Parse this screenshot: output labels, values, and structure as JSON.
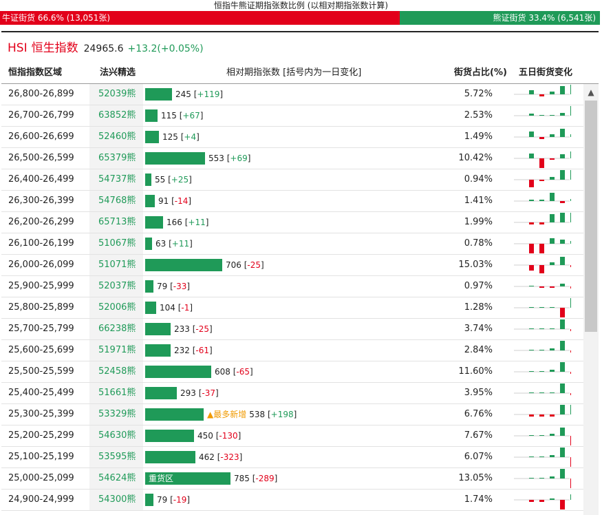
{
  "top_title": "恒指牛熊证期指张数比例 (以相对期指张数计算)",
  "ratio": {
    "bull_label": "牛证街货 66.6% (13,051张)",
    "bear_label": "熊证街货 33.4% (6,541张)",
    "bull_percent": 66.6,
    "bull_color": "#e2001a",
    "bear_color": "#1f9a58"
  },
  "index": {
    "code": "HSI",
    "name": "恒生指数",
    "value": "24965.6",
    "change": "+13.2(+0.05%)"
  },
  "headers": {
    "range": "恒指指数区域",
    "pick": "法兴精选",
    "contracts": "相对期指张数 [括号内为一日变化]",
    "share": "街货占比(%)",
    "five_day": "五日街货变化"
  },
  "max_contracts": 785,
  "rows": [
    {
      "range": "26,800-26,899",
      "code": "52039熊",
      "contracts": "245",
      "delta": "+119",
      "value": 245,
      "pct": "5.72%",
      "tag": "",
      "spark": [
        6,
        -3,
        4,
        12,
        14
      ]
    },
    {
      "range": "26,700-26,799",
      "code": "63852熊",
      "contracts": "115",
      "delta": "+67",
      "value": 115,
      "pct": "2.53%",
      "tag": "",
      "spark": [
        3,
        1,
        1,
        4,
        14
      ]
    },
    {
      "range": "26,600-26,699",
      "code": "52460熊",
      "contracts": "125",
      "delta": "+4",
      "value": 125,
      "pct": "1.49%",
      "tag": "",
      "spark": [
        8,
        -3,
        4,
        12,
        4
      ]
    },
    {
      "range": "26,500-26,599",
      "code": "65379熊",
      "contracts": "553",
      "delta": "+69",
      "value": 553,
      "pct": "10.42%",
      "tag": "",
      "spark": [
        7,
        -14,
        -2,
        6,
        10
      ]
    },
    {
      "range": "26,400-26,499",
      "code": "54737熊",
      "contracts": "55",
      "delta": "+25",
      "value": 55,
      "pct": "0.94%",
      "tag": "",
      "spark": [
        -11,
        -2,
        4,
        14,
        14
      ]
    },
    {
      "range": "26,300-26,399",
      "code": "54768熊",
      "contracts": "91",
      "delta": "-14",
      "value": 91,
      "pct": "1.41%",
      "tag": "",
      "spark": [
        2,
        2,
        12,
        -3,
        3
      ]
    },
    {
      "range": "26,200-26,299",
      "code": "65713熊",
      "contracts": "166",
      "delta": "+11",
      "value": 166,
      "pct": "1.99%",
      "tag": "",
      "spark": [
        -3,
        -3,
        12,
        14,
        14
      ]
    },
    {
      "range": "26,100-26,199",
      "code": "51067熊",
      "contracts": "63",
      "delta": "+11",
      "value": 63,
      "pct": "0.78%",
      "tag": "",
      "spark": [
        -14,
        -14,
        8,
        6,
        4
      ]
    },
    {
      "range": "26,000-26,099",
      "code": "51071熊",
      "contracts": "706",
      "delta": "-25",
      "value": 706,
      "pct": "15.03%",
      "tag": "",
      "spark": [
        -8,
        -12,
        4,
        12,
        -3
      ]
    },
    {
      "range": "25,900-25,999",
      "code": "52037熊",
      "contracts": "79",
      "delta": "-33",
      "value": 79,
      "pct": "0.97%",
      "tag": "",
      "spark": [
        1,
        -2,
        -2,
        4,
        -3
      ]
    },
    {
      "range": "25,800-25,899",
      "code": "52006熊",
      "contracts": "104",
      "delta": "-1",
      "value": 104,
      "pct": "1.28%",
      "tag": "",
      "spark": [
        1,
        1,
        1,
        -14,
        14
      ]
    },
    {
      "range": "25,700-25,799",
      "code": "66238熊",
      "contracts": "233",
      "delta": "-25",
      "value": 233,
      "pct": "3.74%",
      "tag": "",
      "spark": [
        1,
        1,
        1,
        14,
        -3
      ]
    },
    {
      "range": "25,600-25,699",
      "code": "51971熊",
      "contracts": "232",
      "delta": "-61",
      "value": 232,
      "pct": "2.84%",
      "tag": "",
      "spark": [
        1,
        1,
        3,
        14,
        -3
      ]
    },
    {
      "range": "25,500-25,599",
      "code": "52458熊",
      "contracts": "608",
      "delta": "-65",
      "value": 608,
      "pct": "11.60%",
      "tag": "",
      "spark": [
        1,
        1,
        3,
        14,
        -3
      ]
    },
    {
      "range": "25,400-25,499",
      "code": "51661熊",
      "contracts": "293",
      "delta": "-37",
      "value": 293,
      "pct": "3.95%",
      "tag": "",
      "spark": [
        1,
        1,
        1,
        14,
        -3
      ]
    },
    {
      "range": "25,300-25,399",
      "code": "53329熊",
      "contracts": "538",
      "delta": "+198",
      "value": 538,
      "pct": "6.76%",
      "tag": "▲最多新增",
      "tag_outside": true,
      "spark": [
        -3,
        -3,
        -3,
        14,
        14
      ]
    },
    {
      "range": "25,200-25,299",
      "code": "54630熊",
      "contracts": "450",
      "delta": "-130",
      "value": 450,
      "pct": "7.67%",
      "tag": "",
      "spark": [
        1,
        1,
        3,
        12,
        -14
      ]
    },
    {
      "range": "25,100-25,199",
      "code": "53595熊",
      "contracts": "462",
      "delta": "-323",
      "value": 462,
      "pct": "6.07%",
      "tag": "",
      "spark": [
        1,
        1,
        3,
        14,
        -14
      ]
    },
    {
      "range": "25,000-25,099",
      "code": "54624熊",
      "contracts": "785",
      "delta": "-289",
      "value": 785,
      "pct": "13.05%",
      "tag": "重货区",
      "tag_outside": false,
      "spark": [
        1,
        1,
        3,
        14,
        -14
      ]
    },
    {
      "range": "24,900-24,999",
      "code": "54300熊",
      "contracts": "79",
      "delta": "-19",
      "value": 79,
      "pct": "1.74%",
      "tag": "",
      "spark": [
        -3,
        -3,
        2,
        -14,
        8
      ]
    }
  ]
}
